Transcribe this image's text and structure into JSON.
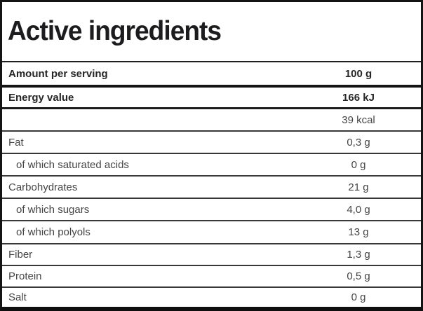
{
  "header": {
    "title": "Active ingredients"
  },
  "table": {
    "rows": [
      {
        "label": "Amount per serving",
        "value": "100 g",
        "bold": true,
        "indent": false
      },
      {
        "label": "Energy value",
        "value": "166 kJ",
        "bold": true,
        "indent": false
      },
      {
        "label": "",
        "value": "39 kcal",
        "bold": false,
        "indent": false
      },
      {
        "label": "Fat",
        "value": "0,3 g",
        "bold": false,
        "indent": false
      },
      {
        "label": "of which saturated acids",
        "value": "0 g",
        "bold": false,
        "indent": true
      },
      {
        "label": "Carbohydrates",
        "value": "21 g",
        "bold": false,
        "indent": false
      },
      {
        "label": "of which sugars",
        "value": "4,0 g",
        "bold": false,
        "indent": true
      },
      {
        "label": "of which polyols",
        "value": "13 g",
        "bold": false,
        "indent": true
      },
      {
        "label": "Fiber",
        "value": "1,3 g",
        "bold": false,
        "indent": false
      },
      {
        "label": "Protein",
        "value": "0,5 g",
        "bold": false,
        "indent": false
      },
      {
        "label": "Salt",
        "value": "0 g",
        "bold": false,
        "indent": false
      }
    ]
  },
  "colors": {
    "border_strong": "#141414",
    "border_row": "#383838",
    "text_title": "#1c1c1e",
    "text_bold_row": "#262626",
    "text_row": "#454545",
    "background": "#ffffff"
  }
}
